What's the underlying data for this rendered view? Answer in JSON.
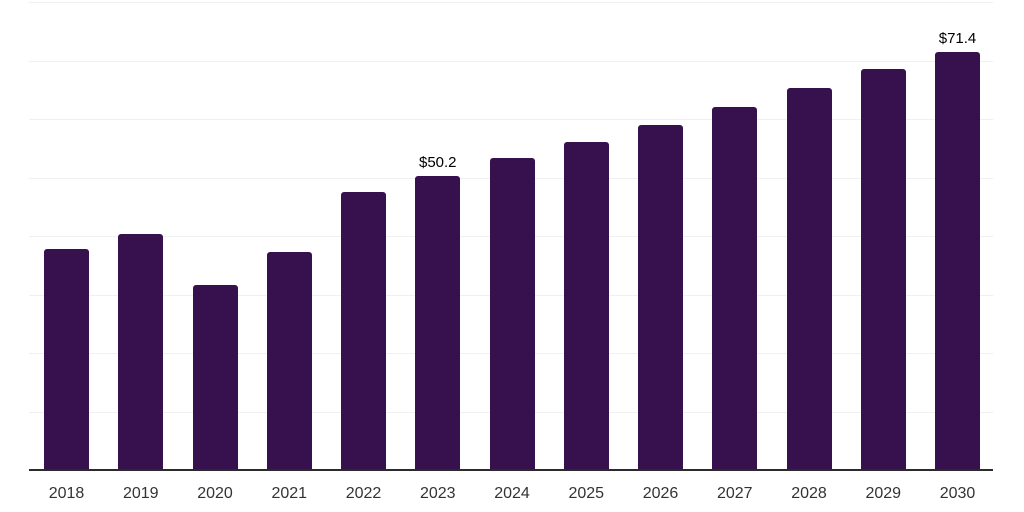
{
  "chart_data": {
    "type": "bar",
    "title": "",
    "xlabel": "",
    "ylabel": "",
    "categories": [
      "2018",
      "2019",
      "2020",
      "2021",
      "2022",
      "2023",
      "2024",
      "2025",
      "2026",
      "2027",
      "2028",
      "2029",
      "2030"
    ],
    "values": [
      37.8,
      40.3,
      31.7,
      37.3,
      47.5,
      50.2,
      53.3,
      56.1,
      59.0,
      62.1,
      65.3,
      68.5,
      71.4
    ],
    "data_labels": [
      {
        "category": "2023",
        "text": "$50.2"
      },
      {
        "category": "2030",
        "text": "$71.4"
      }
    ],
    "ylim": [
      0,
      80
    ],
    "grid_step": 10,
    "grid": "on",
    "legend": "none",
    "y_tick_labels_visible": false,
    "colors": {
      "bar": "#37114E",
      "axis_line": "#2b2b2b",
      "gridline": "#f0f0f0",
      "tick_label": "#333333",
      "data_label": "#000000",
      "background": "#ffffff"
    }
  }
}
